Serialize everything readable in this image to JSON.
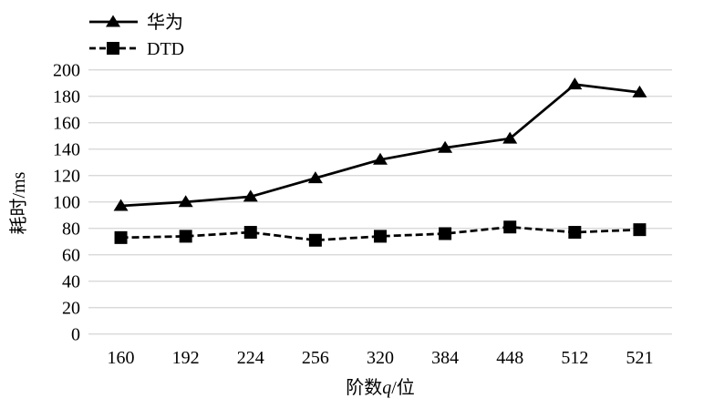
{
  "figure": {
    "background": "#ffffff",
    "series_color": "#000000",
    "gridline_color": "#d9d9d9"
  },
  "legend": {
    "position": "top-left",
    "items": [
      {
        "label": "华为",
        "marker": "triangle-marker",
        "line_style": "solid"
      },
      {
        "label": "DTD",
        "marker": "square-marker",
        "line_style": "dashed"
      }
    ]
  },
  "chart_data": {
    "type": "line",
    "title": "",
    "xlabel": "阶数q/位",
    "xlabel_parts": {
      "prefix": "阶数",
      "variable": "q",
      "suffix": "/位"
    },
    "ylabel": "耗时/ms",
    "categories": [
      "160",
      "192",
      "224",
      "256",
      "320",
      "384",
      "448",
      "512",
      "521"
    ],
    "series": [
      {
        "name": "华为",
        "marker": "triangle",
        "line": "solid",
        "values": [
          97,
          100,
          104,
          118,
          132,
          141,
          148,
          189,
          183
        ]
      },
      {
        "name": "DTD",
        "marker": "square",
        "line": "dashed",
        "values": [
          73,
          74,
          77,
          71,
          74,
          76,
          81,
          77,
          79
        ]
      }
    ],
    "ylim": [
      0,
      200
    ],
    "ytick_step": 20,
    "yticks": [
      0,
      20,
      40,
      60,
      80,
      100,
      120,
      140,
      160,
      180,
      200
    ],
    "grid": "horizontal-only",
    "legend_position": "top-left"
  }
}
